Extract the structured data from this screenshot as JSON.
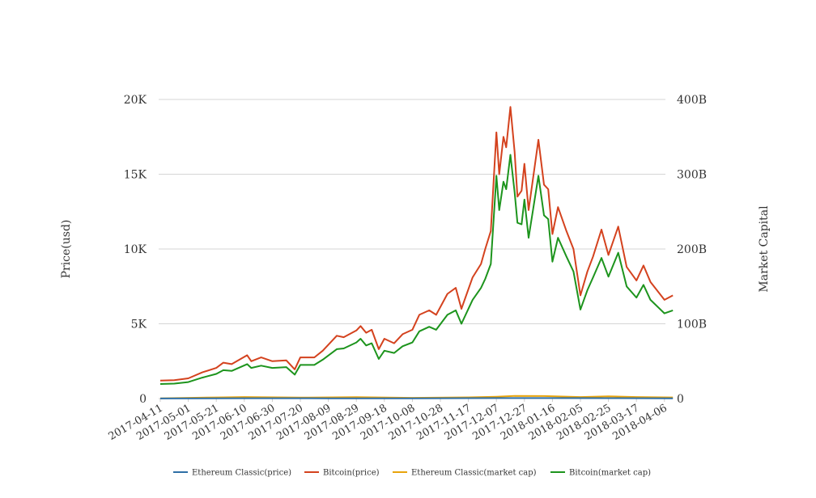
{
  "chart_data": {
    "type": "line",
    "title": "",
    "ylabel_left": "Price(usd)",
    "ylabel_right": "Market Capital",
    "y_left": {
      "range": [
        0,
        20000
      ],
      "ticks": [
        "0",
        "5K",
        "10K",
        "15K",
        "20K"
      ]
    },
    "y_right": {
      "range": [
        0,
        400
      ],
      "unit": "B",
      "ticks": [
        "0",
        "100B",
        "200B",
        "300B",
        "400B"
      ]
    },
    "x_ticks": [
      "2017-04-11",
      "2017-05-01",
      "2017-05-21",
      "2017-06-10",
      "2017-06-30",
      "2017-07-20",
      "2017-08-09",
      "2017-08-29",
      "2017-09-18",
      "2017-10-08",
      "2017-10-28",
      "2017-11-17",
      "2017-12-07",
      "2017-12-27",
      "2018-01-16",
      "2018-02-05",
      "2018-02-25",
      "2018-03-17",
      "2018-04-06"
    ],
    "grid": "horizontal",
    "legend_position": "bottom",
    "series": [
      {
        "name": "Ethereum Classic(price)",
        "color": "#2e6fa6",
        "axis": "left",
        "points": [
          [
            "2017-04-11",
            3
          ],
          [
            "2017-06-10",
            20
          ],
          [
            "2017-08-09",
            15
          ],
          [
            "2017-10-08",
            12
          ],
          [
            "2017-12-07",
            30
          ],
          [
            "2018-01-16",
            35
          ],
          [
            "2018-02-25",
            25
          ],
          [
            "2018-04-12",
            14
          ]
        ]
      },
      {
        "name": "Bitcoin(price)",
        "color": "#d4421e",
        "axis": "left",
        "points": [
          [
            "2017-04-11",
            1200
          ],
          [
            "2017-04-21",
            1230
          ],
          [
            "2017-05-01",
            1350
          ],
          [
            "2017-05-11",
            1750
          ],
          [
            "2017-05-21",
            2050
          ],
          [
            "2017-05-26",
            2400
          ],
          [
            "2017-06-01",
            2300
          ],
          [
            "2017-06-12",
            2900
          ],
          [
            "2017-06-15",
            2500
          ],
          [
            "2017-06-22",
            2750
          ],
          [
            "2017-06-30",
            2500
          ],
          [
            "2017-07-10",
            2550
          ],
          [
            "2017-07-16",
            1950
          ],
          [
            "2017-07-20",
            2750
          ],
          [
            "2017-07-30",
            2750
          ],
          [
            "2017-08-05",
            3200
          ],
          [
            "2017-08-15",
            4200
          ],
          [
            "2017-08-20",
            4100
          ],
          [
            "2017-08-29",
            4550
          ],
          [
            "2017-09-01",
            4850
          ],
          [
            "2017-09-05",
            4400
          ],
          [
            "2017-09-09",
            4600
          ],
          [
            "2017-09-14",
            3300
          ],
          [
            "2017-09-18",
            4000
          ],
          [
            "2017-09-25",
            3700
          ],
          [
            "2017-10-01",
            4300
          ],
          [
            "2017-10-08",
            4600
          ],
          [
            "2017-10-13",
            5600
          ],
          [
            "2017-10-20",
            5900
          ],
          [
            "2017-10-25",
            5600
          ],
          [
            "2017-11-02",
            7000
          ],
          [
            "2017-11-08",
            7400
          ],
          [
            "2017-11-12",
            6000
          ],
          [
            "2017-11-20",
            8100
          ],
          [
            "2017-11-26",
            9000
          ],
          [
            "2017-11-29",
            10000
          ],
          [
            "2017-12-03",
            11200
          ],
          [
            "2017-12-07",
            17800
          ],
          [
            "2017-12-09",
            15000
          ],
          [
            "2017-12-12",
            17500
          ],
          [
            "2017-12-14",
            16800
          ],
          [
            "2017-12-17",
            19500
          ],
          [
            "2017-12-20",
            16500
          ],
          [
            "2017-12-22",
            13500
          ],
          [
            "2017-12-25",
            13900
          ],
          [
            "2017-12-27",
            15700
          ],
          [
            "2017-12-30",
            12600
          ],
          [
            "2018-01-06",
            17300
          ],
          [
            "2018-01-10",
            14300
          ],
          [
            "2018-01-13",
            14000
          ],
          [
            "2018-01-16",
            11000
          ],
          [
            "2018-01-20",
            12800
          ],
          [
            "2018-01-26",
            11200
          ],
          [
            "2018-01-31",
            10000
          ],
          [
            "2018-02-05",
            6900
          ],
          [
            "2018-02-10",
            8500
          ],
          [
            "2018-02-14",
            9500
          ],
          [
            "2018-02-20",
            11300
          ],
          [
            "2018-02-25",
            9600
          ],
          [
            "2018-03-04",
            11500
          ],
          [
            "2018-03-10",
            8800
          ],
          [
            "2018-03-17",
            7900
          ],
          [
            "2018-03-22",
            8900
          ],
          [
            "2018-03-27",
            7800
          ],
          [
            "2018-04-06",
            6600
          ],
          [
            "2018-04-12",
            6900
          ]
        ]
      },
      {
        "name": "Ethereum Classic(market cap)",
        "color": "#e8a40c",
        "axis": "right",
        "points": [
          [
            "2017-04-11",
            0.3
          ],
          [
            "2017-05-21",
            1.5
          ],
          [
            "2017-06-10",
            2
          ],
          [
            "2017-07-20",
            1.3
          ],
          [
            "2017-08-29",
            1.8
          ],
          [
            "2017-10-08",
            1.0
          ],
          [
            "2017-11-17",
            1.6
          ],
          [
            "2017-12-07",
            2.5
          ],
          [
            "2017-12-20",
            3.5
          ],
          [
            "2018-01-10",
            3.3
          ],
          [
            "2018-02-05",
            2.0
          ],
          [
            "2018-02-25",
            3.0
          ],
          [
            "2018-03-17",
            2.0
          ],
          [
            "2018-04-12",
            1.5
          ]
        ]
      },
      {
        "name": "Bitcoin(market cap)",
        "color": "#1d941d",
        "axis": "right",
        "points": [
          [
            "2017-04-11",
            19.5
          ],
          [
            "2017-04-21",
            20
          ],
          [
            "2017-05-01",
            22
          ],
          [
            "2017-05-11",
            28
          ],
          [
            "2017-05-21",
            33
          ],
          [
            "2017-05-26",
            38
          ],
          [
            "2017-06-01",
            37
          ],
          [
            "2017-06-12",
            46
          ],
          [
            "2017-06-15",
            41
          ],
          [
            "2017-06-22",
            44
          ],
          [
            "2017-06-30",
            41
          ],
          [
            "2017-07-10",
            42
          ],
          [
            "2017-07-16",
            32
          ],
          [
            "2017-07-20",
            45
          ],
          [
            "2017-07-30",
            45
          ],
          [
            "2017-08-05",
            52
          ],
          [
            "2017-08-15",
            66
          ],
          [
            "2017-08-20",
            67
          ],
          [
            "2017-08-29",
            75
          ],
          [
            "2017-09-01",
            80
          ],
          [
            "2017-09-05",
            71
          ],
          [
            "2017-09-09",
            74
          ],
          [
            "2017-09-14",
            53
          ],
          [
            "2017-09-18",
            64
          ],
          [
            "2017-09-25",
            61
          ],
          [
            "2017-10-01",
            70
          ],
          [
            "2017-10-08",
            75
          ],
          [
            "2017-10-13",
            90
          ],
          [
            "2017-10-20",
            96
          ],
          [
            "2017-10-25",
            92
          ],
          [
            "2017-11-02",
            112
          ],
          [
            "2017-11-08",
            118
          ],
          [
            "2017-11-12",
            100
          ],
          [
            "2017-11-20",
            132
          ],
          [
            "2017-11-26",
            148
          ],
          [
            "2017-11-29",
            160
          ],
          [
            "2017-12-03",
            180
          ],
          [
            "2017-12-07",
            298
          ],
          [
            "2017-12-09",
            252
          ],
          [
            "2017-12-12",
            290
          ],
          [
            "2017-12-14",
            280
          ],
          [
            "2017-12-17",
            326
          ],
          [
            "2017-12-20",
            276
          ],
          [
            "2017-12-22",
            235
          ],
          [
            "2017-12-25",
            233
          ],
          [
            "2017-12-27",
            266
          ],
          [
            "2017-12-30",
            215
          ],
          [
            "2018-01-06",
            298
          ],
          [
            "2018-01-10",
            245
          ],
          [
            "2018-01-13",
            240
          ],
          [
            "2018-01-16",
            183
          ],
          [
            "2018-01-20",
            215
          ],
          [
            "2018-01-26",
            190
          ],
          [
            "2018-01-31",
            170
          ],
          [
            "2018-02-05",
            119
          ],
          [
            "2018-02-10",
            145
          ],
          [
            "2018-02-14",
            162
          ],
          [
            "2018-02-20",
            188
          ],
          [
            "2018-02-25",
            163
          ],
          [
            "2018-03-04",
            195
          ],
          [
            "2018-03-10",
            150
          ],
          [
            "2018-03-17",
            135
          ],
          [
            "2018-03-22",
            152
          ],
          [
            "2018-03-27",
            132
          ],
          [
            "2018-04-06",
            114
          ],
          [
            "2018-04-12",
            118
          ]
        ]
      }
    ]
  }
}
